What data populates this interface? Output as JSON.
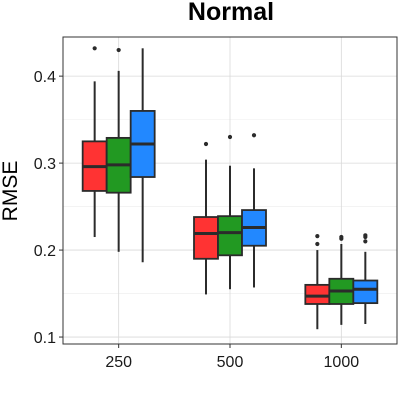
{
  "chart_data": {
    "type": "boxplot",
    "title": "Normal",
    "xlabel": "",
    "ylabel": "RMSE",
    "ylim": [
      0.092,
      0.445
    ],
    "yticks": [
      0.1,
      0.2,
      0.3,
      0.4
    ],
    "yticklabels": [
      "0.1",
      "0.2",
      "0.3",
      "0.4"
    ],
    "grid": true,
    "legend": "none",
    "categories": [
      "250",
      "500",
      "1000"
    ],
    "series": [
      {
        "color": "#ff3333",
        "boxes": [
          {
            "min": 0.215,
            "q1": 0.268,
            "median": 0.296,
            "q3": 0.325,
            "max": 0.394,
            "outliers": [
              0.432
            ]
          },
          {
            "min": 0.149,
            "q1": 0.19,
            "median": 0.219,
            "q3": 0.238,
            "max": 0.304,
            "outliers": [
              0.322
            ]
          },
          {
            "min": 0.109,
            "q1": 0.138,
            "median": 0.147,
            "q3": 0.16,
            "max": 0.2,
            "outliers": [
              0.207,
              0.216
            ]
          }
        ]
      },
      {
        "color": "#229922",
        "boxes": [
          {
            "min": 0.198,
            "q1": 0.266,
            "median": 0.298,
            "q3": 0.329,
            "max": 0.406,
            "outliers": [
              0.43
            ]
          },
          {
            "min": 0.155,
            "q1": 0.194,
            "median": 0.22,
            "q3": 0.239,
            "max": 0.297,
            "outliers": [
              0.33
            ]
          },
          {
            "min": 0.114,
            "q1": 0.138,
            "median": 0.153,
            "q3": 0.167,
            "max": 0.207,
            "outliers": [
              0.213,
              0.215
            ]
          }
        ]
      },
      {
        "color": "#2288ff",
        "boxes": [
          {
            "min": 0.186,
            "q1": 0.284,
            "median": 0.322,
            "q3": 0.36,
            "max": 0.432,
            "outliers": []
          },
          {
            "min": 0.157,
            "q1": 0.205,
            "median": 0.226,
            "q3": 0.246,
            "max": 0.294,
            "outliers": [
              0.332
            ]
          },
          {
            "min": 0.115,
            "q1": 0.139,
            "median": 0.155,
            "q3": 0.165,
            "max": 0.198,
            "outliers": [
              0.21,
              0.215,
              0.217
            ]
          }
        ]
      }
    ]
  }
}
